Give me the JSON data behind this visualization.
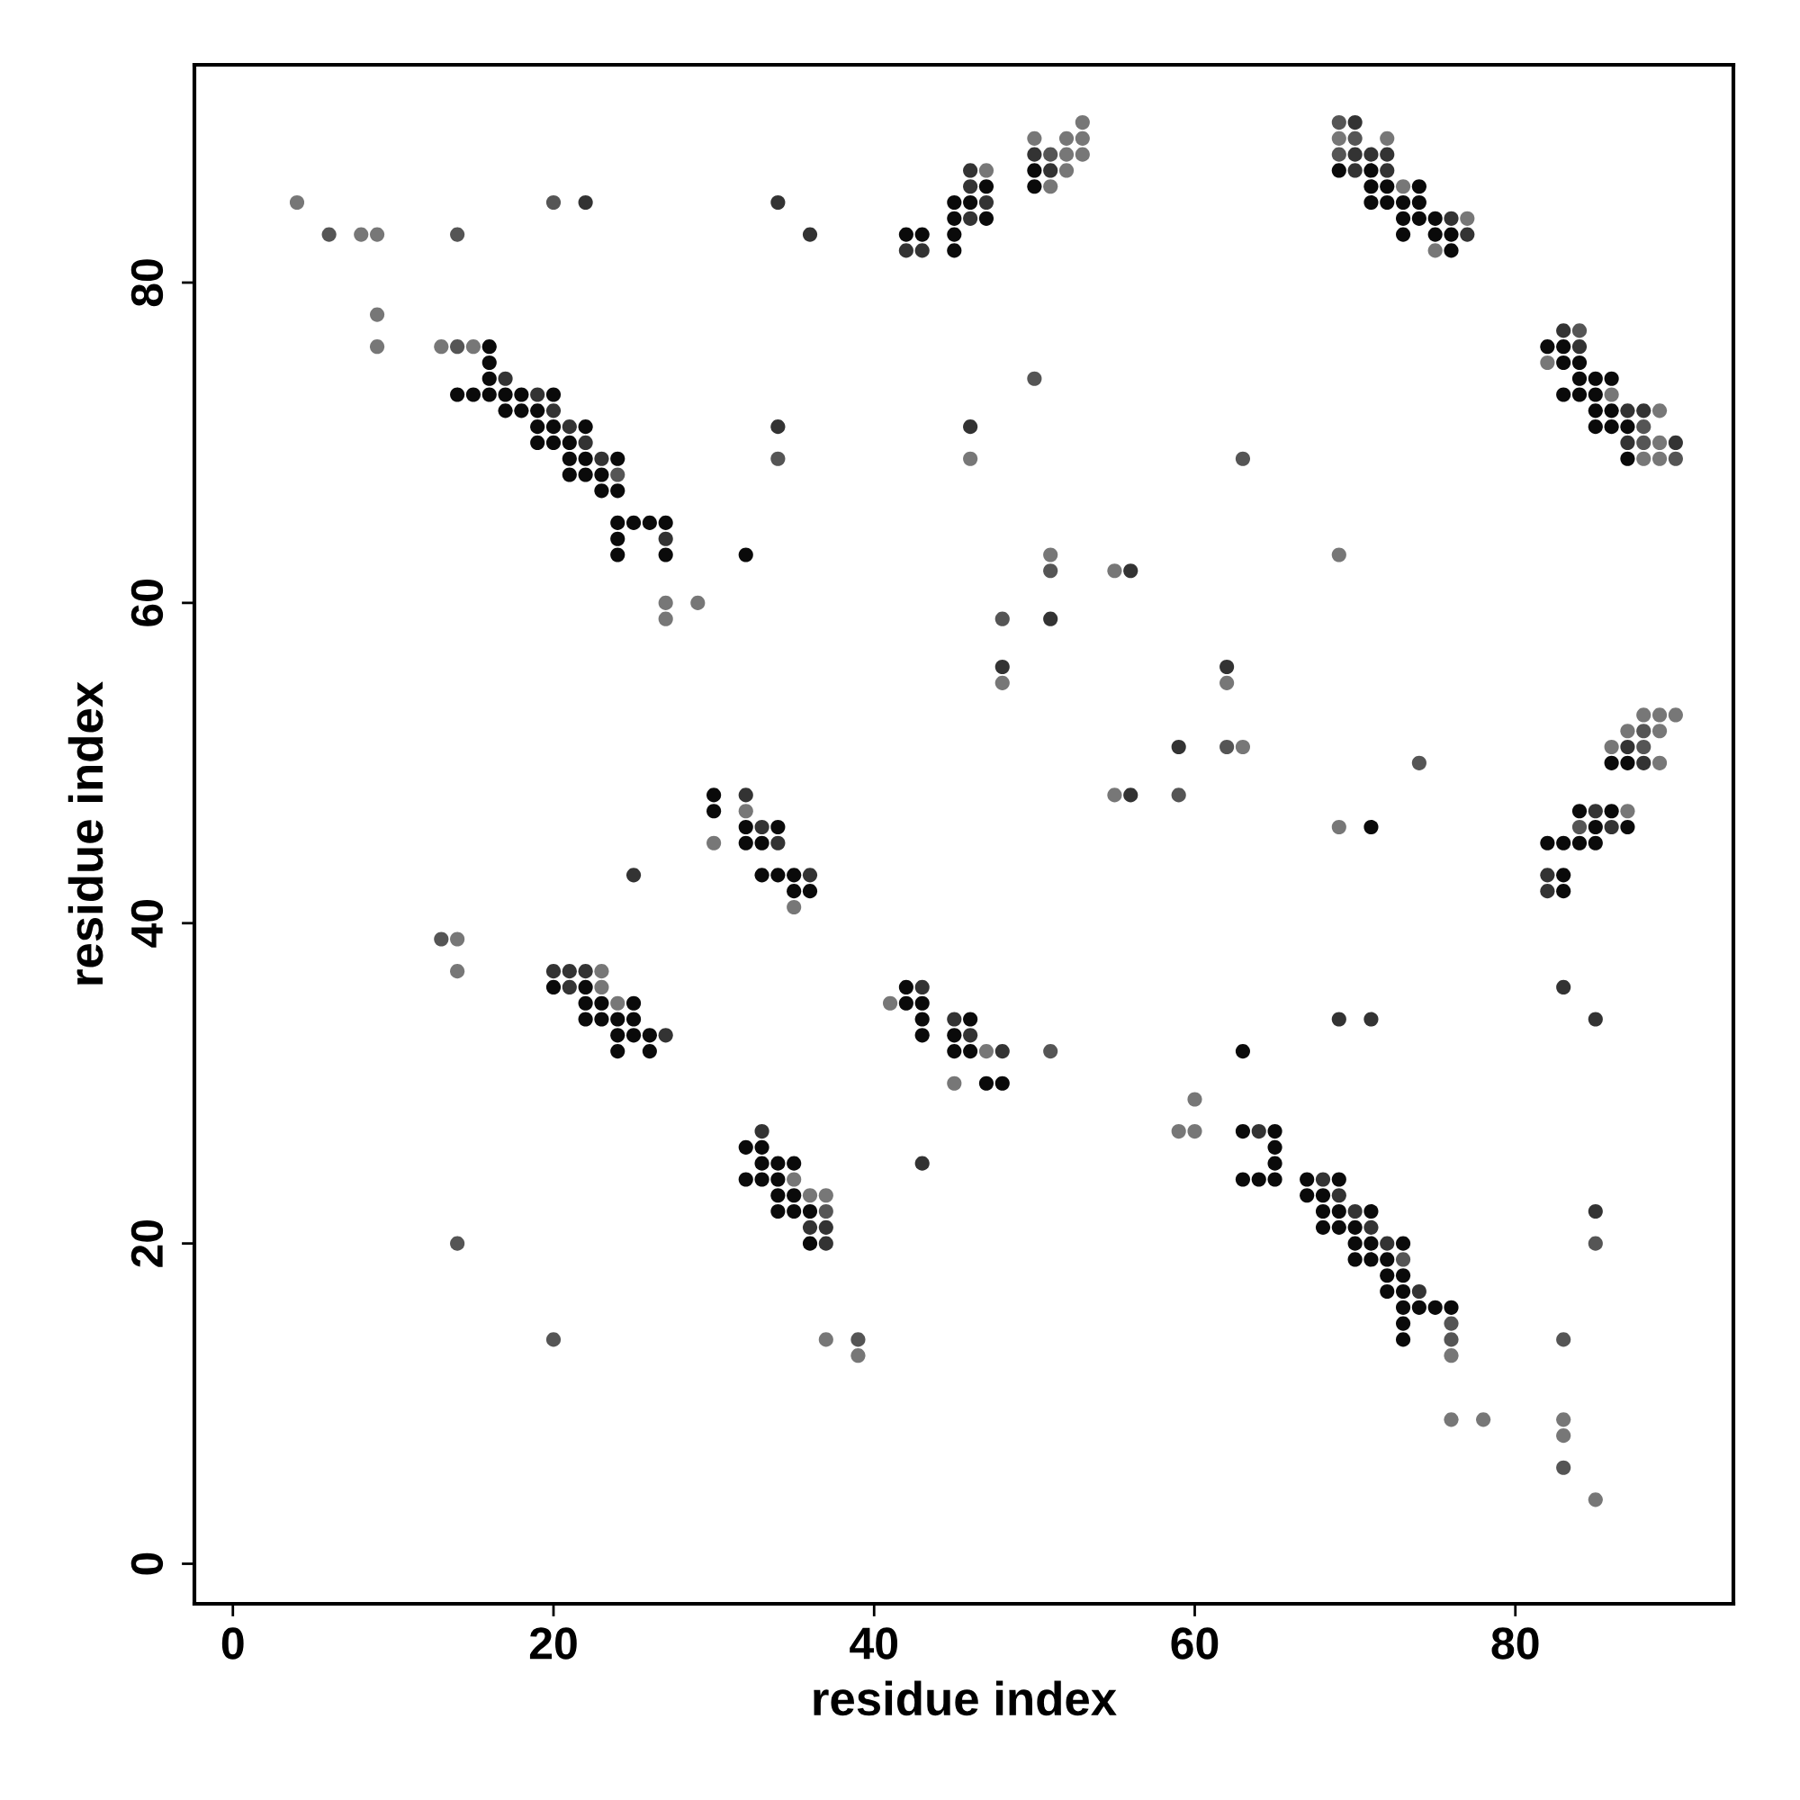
{
  "chart_data": {
    "type": "scatter",
    "xlabel": "residue index",
    "ylabel": "residue index",
    "xlim": [
      -2.4,
      93.6
    ],
    "ylim": [
      -2.5,
      93.6
    ],
    "xticks": [
      0,
      20,
      40,
      60,
      80
    ],
    "yticks": [
      0,
      20,
      40,
      60,
      80
    ],
    "marker": "circle",
    "series": [
      {
        "color": "#777777",
        "x": [
          13,
          15,
          27,
          29,
          27,
          47,
          50,
          52,
          53,
          52,
          53,
          53,
          52,
          51,
          69,
          72,
          73,
          77,
          75,
          82,
          86,
          89,
          89,
          88,
          89,
          88,
          89,
          90,
          87,
          89,
          86,
          89,
          87,
          30,
          32,
          35,
          23,
          23,
          24,
          41,
          47,
          45,
          35,
          36,
          37,
          76,
          4,
          8,
          9,
          9,
          9,
          46,
          51,
          55,
          48,
          69,
          62,
          63,
          55,
          69,
          14,
          14,
          59,
          60,
          60,
          37,
          39,
          76,
          78,
          83,
          83,
          85
        ],
        "values": [
          76,
          76,
          60,
          60,
          59,
          87,
          89,
          88,
          88,
          89,
          89,
          90,
          87,
          86,
          89,
          89,
          86,
          84,
          82,
          75,
          73,
          72,
          70,
          69,
          69,
          53,
          53,
          53,
          52,
          52,
          51,
          50,
          47,
          45,
          47,
          41,
          37,
          36,
          35,
          35,
          32,
          30,
          24,
          23,
          23,
          13,
          85,
          83,
          83,
          78,
          76,
          69,
          63,
          62,
          55,
          63,
          55,
          51,
          48,
          46,
          39,
          37,
          27,
          27,
          29,
          14,
          13,
          9,
          9,
          9,
          8,
          4
        ]
      },
      {
        "color": "#555555",
        "x": [
          14,
          24,
          51,
          84,
          88,
          88,
          90,
          88,
          88,
          84,
          37,
          73,
          76,
          76,
          69,
          70,
          69,
          6,
          14,
          20,
          34,
          63,
          51,
          48,
          62,
          59,
          74,
          14,
          13,
          51,
          85,
          20,
          39,
          83,
          83,
          50
        ],
        "values": [
          76,
          68,
          88,
          77,
          71,
          70,
          69,
          52,
          51,
          46,
          22,
          19,
          15,
          14,
          90,
          89,
          88,
          83,
          83,
          85,
          69,
          69,
          62,
          59,
          51,
          48,
          50,
          20,
          39,
          32,
          20,
          14,
          14,
          14,
          6,
          74
        ]
      },
      {
        "color": "#333333",
        "x": [
          17,
          19,
          20,
          21,
          22,
          23,
          27,
          42,
          43,
          46,
          46,
          47,
          46,
          50,
          51,
          70,
          70,
          71,
          72,
          70,
          72,
          76,
          77,
          83,
          84,
          87,
          88,
          87,
          90,
          87,
          88,
          85,
          86,
          82,
          82,
          32,
          33,
          34,
          25,
          36,
          20,
          21,
          22,
          21,
          27,
          43,
          45,
          46,
          48,
          33,
          36,
          37,
          37,
          43,
          64,
          68,
          69,
          70,
          71,
          72,
          74,
          22,
          34,
          36,
          34,
          46,
          51,
          56,
          48,
          62,
          59,
          56,
          69,
          71,
          83,
          85,
          85
        ],
        "values": [
          74,
          73,
          72,
          71,
          70,
          69,
          64,
          82,
          82,
          87,
          86,
          85,
          84,
          88,
          87,
          90,
          88,
          88,
          88,
          87,
          87,
          84,
          83,
          77,
          76,
          72,
          72,
          70,
          70,
          51,
          50,
          47,
          46,
          43,
          42,
          48,
          46,
          45,
          43,
          43,
          37,
          37,
          37,
          36,
          33,
          36,
          34,
          33,
          32,
          27,
          21,
          21,
          20,
          25,
          27,
          24,
          23,
          22,
          21,
          20,
          17,
          85,
          85,
          83,
          71,
          71,
          59,
          62,
          56,
          56,
          51,
          48,
          34,
          34,
          36,
          34,
          22
        ]
      },
      {
        "color": "#0a0a0a",
        "x": [
          16,
          16,
          16,
          14,
          15,
          16,
          17,
          18,
          20,
          17,
          18,
          19,
          19,
          20,
          22,
          19,
          20,
          21,
          21,
          22,
          24,
          21,
          22,
          23,
          23,
          24,
          24,
          25,
          26,
          27,
          24,
          24,
          27,
          42,
          43,
          45,
          46,
          47,
          45,
          47,
          45,
          45,
          50,
          50,
          69,
          71,
          71,
          72,
          74,
          71,
          72,
          73,
          74,
          73,
          74,
          75,
          73,
          75,
          76,
          76,
          82,
          83,
          83,
          84,
          84,
          85,
          86,
          83,
          84,
          85,
          85,
          86,
          85,
          86,
          87,
          87,
          86,
          87,
          84,
          86,
          85,
          87,
          82,
          83,
          84,
          85,
          83,
          83,
          30,
          30,
          32,
          34,
          32,
          33,
          33,
          34,
          35,
          35,
          36,
          20,
          22,
          22,
          23,
          25,
          22,
          23,
          24,
          25,
          24,
          25,
          26,
          24,
          26,
          42,
          42,
          43,
          43,
          43,
          46,
          45,
          45,
          46,
          47,
          48,
          32,
          33,
          33,
          34,
          35,
          32,
          33,
          34,
          34,
          35,
          34,
          35,
          36,
          36,
          63,
          65,
          65,
          65,
          63,
          64,
          65,
          67,
          69,
          67,
          68,
          68,
          69,
          71,
          68,
          69,
          70,
          70,
          71,
          73,
          70,
          71,
          72,
          72,
          73,
          72,
          73,
          73,
          74,
          75,
          76,
          73,
          73,
          32,
          63,
          71
        ],
        "values": [
          76,
          75,
          74,
          73,
          73,
          73,
          73,
          73,
          73,
          72,
          72,
          72,
          71,
          71,
          71,
          70,
          70,
          70,
          69,
          69,
          69,
          68,
          68,
          68,
          67,
          67,
          65,
          65,
          65,
          65,
          64,
          63,
          63,
          83,
          83,
          85,
          85,
          86,
          84,
          84,
          83,
          82,
          87,
          86,
          87,
          87,
          86,
          86,
          86,
          85,
          85,
          85,
          85,
          84,
          84,
          84,
          83,
          83,
          83,
          82,
          76,
          76,
          75,
          75,
          74,
          74,
          74,
          73,
          73,
          73,
          72,
          72,
          71,
          71,
          71,
          69,
          50,
          50,
          47,
          47,
          46,
          46,
          45,
          45,
          45,
          45,
          43,
          42,
          48,
          47,
          46,
          46,
          45,
          45,
          43,
          43,
          43,
          42,
          42,
          36,
          36,
          35,
          35,
          35,
          34,
          34,
          34,
          34,
          33,
          33,
          33,
          32,
          32,
          36,
          35,
          35,
          34,
          33,
          34,
          33,
          32,
          32,
          30,
          30,
          26,
          26,
          25,
          25,
          25,
          24,
          24,
          24,
          23,
          23,
          22,
          22,
          22,
          20,
          27,
          27,
          26,
          25,
          24,
          24,
          24,
          24,
          24,
          23,
          23,
          22,
          22,
          22,
          21,
          21,
          21,
          20,
          20,
          20,
          19,
          19,
          19,
          18,
          18,
          17,
          17,
          16,
          16,
          16,
          16,
          15,
          14,
          63,
          32,
          46
        ]
      }
    ]
  }
}
